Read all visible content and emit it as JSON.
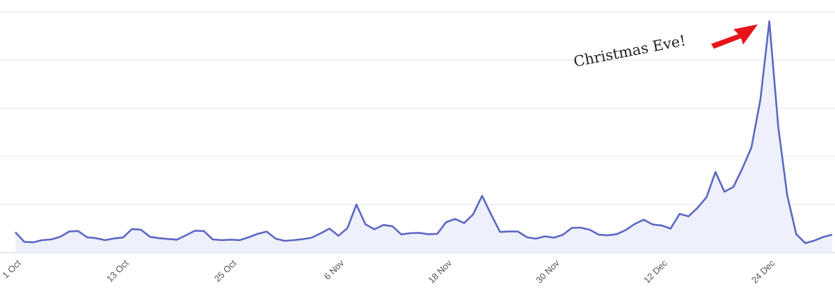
{
  "chart_data": {
    "type": "area",
    "title": "",
    "xlabel": "",
    "ylabel": "",
    "grid": true,
    "legend": "none",
    "y_tick_labels_shown": false,
    "line_color": "#5b67c2",
    "fill_color": "#eef0fb",
    "arrow_color": "#e8141b",
    "x_start_date": "2016-10-01",
    "ylim": [
      0,
      100
    ],
    "y_gridlines": [
      0,
      20,
      40,
      60,
      80,
      100
    ],
    "x_ticks": [
      "1 Oct",
      "13 Oct",
      "25 Oct",
      "6 Nov",
      "18 Nov",
      "30 Nov",
      "12 Dec",
      "24 Dec"
    ],
    "values": [
      8.5,
      4.5,
      4.3,
      5.2,
      5.5,
      6.6,
      8.8,
      9.0,
      6.4,
      6.0,
      5.2,
      5.9,
      6.3,
      9.8,
      9.5,
      6.6,
      6.0,
      5.7,
      5.4,
      7.2,
      9.1,
      9.0,
      5.5,
      5.2,
      5.4,
      5.2,
      6.4,
      7.8,
      8.8,
      5.8,
      4.9,
      5.2,
      5.6,
      6.2,
      8.0,
      10.0,
      7.0,
      10.2,
      20.0,
      11.8,
      9.7,
      11.5,
      11.0,
      7.6,
      8.1,
      8.2,
      7.7,
      7.8,
      12.7,
      14.0,
      12.3,
      15.9,
      23.6,
      15.9,
      8.6,
      8.8,
      8.8,
      6.4,
      5.8,
      6.8,
      6.2,
      7.4,
      10.3,
      10.4,
      9.5,
      7.5,
      7.2,
      7.7,
      9.4,
      11.9,
      13.7,
      11.7,
      11.3,
      10.0,
      16.1,
      15.1,
      18.6,
      23.0,
      33.5,
      25.3,
      27.3,
      35.0,
      43.6,
      63.4,
      96.1,
      52.1,
      23.8,
      7.7,
      4.0,
      5.0,
      6.5,
      7.5
    ],
    "annotations": [
      {
        "text": "Christmas Eve!",
        "target": "24 Dec"
      }
    ]
  }
}
